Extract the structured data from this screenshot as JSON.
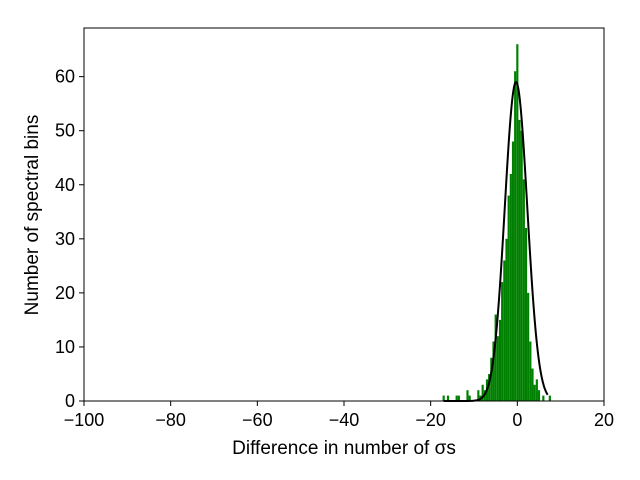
{
  "chart_data": {
    "type": "histogram",
    "xlabel": "Difference in number of σs",
    "ylabel": "Number of spectral bins",
    "xlim": [
      -100,
      20
    ],
    "ylim": [
      0,
      69
    ],
    "x_ticks": [
      -100,
      -80,
      -60,
      -40,
      -20,
      0,
      20
    ],
    "x_tick_labels": [
      "−100",
      "−80",
      "−60",
      "−40",
      "−20",
      "0",
      "20"
    ],
    "y_ticks": [
      0,
      10,
      20,
      30,
      40,
      50,
      60
    ],
    "y_tick_labels": [
      "0",
      "10",
      "20",
      "30",
      "40",
      "50",
      "60"
    ],
    "grid": false,
    "bar_color": "#008000",
    "line_color": "#000000",
    "histogram": {
      "bin_width": 0.5,
      "bins": [
        {
          "x": -17.0,
          "count": 1
        },
        {
          "x": -16.0,
          "count": 1
        },
        {
          "x": -14.0,
          "count": 1
        },
        {
          "x": -13.5,
          "count": 1
        },
        {
          "x": -11.5,
          "count": 2
        },
        {
          "x": -11.0,
          "count": 1
        },
        {
          "x": -9.0,
          "count": 2
        },
        {
          "x": -8.5,
          "count": 1
        },
        {
          "x": -8.0,
          "count": 3
        },
        {
          "x": -7.5,
          "count": 2
        },
        {
          "x": -7.0,
          "count": 4
        },
        {
          "x": -6.5,
          "count": 5
        },
        {
          "x": -6.0,
          "count": 8
        },
        {
          "x": -5.5,
          "count": 11
        },
        {
          "x": -5.0,
          "count": 16
        },
        {
          "x": -4.5,
          "count": 12
        },
        {
          "x": -4.0,
          "count": 15
        },
        {
          "x": -3.5,
          "count": 22
        },
        {
          "x": -3.0,
          "count": 26
        },
        {
          "x": -2.5,
          "count": 30
        },
        {
          "x": -2.0,
          "count": 38
        },
        {
          "x": -1.5,
          "count": 42
        },
        {
          "x": -1.0,
          "count": 48
        },
        {
          "x": -0.5,
          "count": 61
        },
        {
          "x": 0.0,
          "count": 66
        },
        {
          "x": 0.5,
          "count": 52
        },
        {
          "x": 1.0,
          "count": 50
        },
        {
          "x": 1.5,
          "count": 41
        },
        {
          "x": 2.0,
          "count": 32
        },
        {
          "x": 2.5,
          "count": 20
        },
        {
          "x": 3.0,
          "count": 11
        },
        {
          "x": 3.5,
          "count": 6
        },
        {
          "x": 4.0,
          "count": 3
        },
        {
          "x": 4.5,
          "count": 4
        },
        {
          "x": 5.0,
          "count": 2
        },
        {
          "x": 6.0,
          "count": 1
        },
        {
          "x": 7.5,
          "count": 1
        }
      ]
    },
    "fit_curve": {
      "type": "gaussian",
      "amplitude": 59,
      "mean": -0.3,
      "sigma": 2.6,
      "x_range": [
        -17,
        7
      ]
    }
  }
}
